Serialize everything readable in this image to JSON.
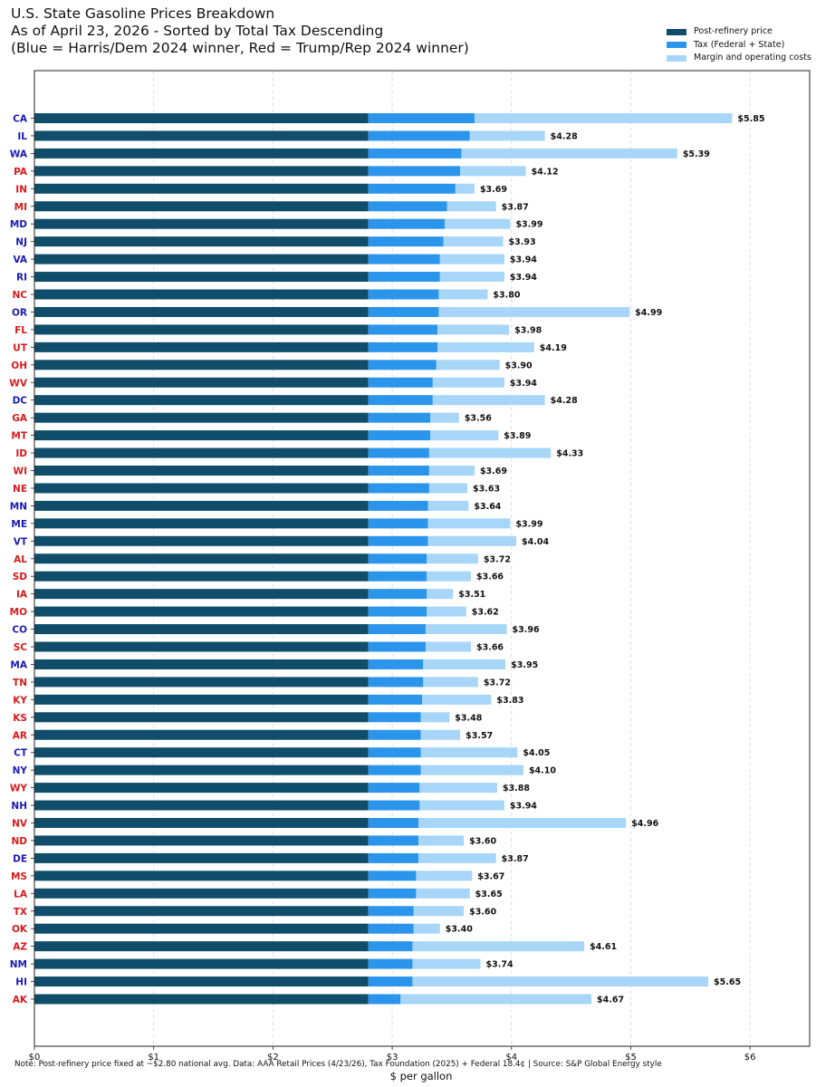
{
  "title_lines": [
    "U.S. State Gasoline Prices Breakdown",
    "As of April 23, 2026 - Sorted by Total Tax Descending",
    "(Blue = Harris/Dem 2024 winner, Red = Trump/Rep 2024 winner)"
  ],
  "footnote": "Note: Post-refinery price fixed at ~$2.80 national avg. Data: AAA Retail Prices (4/23/26), Tax Foundation (2025) + Federal 18.4¢ | Source: S&P Global Energy style",
  "colors": {
    "post_refinery": "#0f4d6a",
    "tax": "#2b95ec",
    "margin": "#a7d6f8",
    "dem": "#1a1ab5",
    "rep": "#d91a1a"
  },
  "chart_data": {
    "type": "bar",
    "orientation": "horizontal",
    "stacked": true,
    "xlabel": "$ per gallon",
    "xlim": [
      0,
      6.5
    ],
    "xticks": [
      0,
      1,
      2,
      3,
      4,
      5,
      6
    ],
    "xtick_labels": [
      "$0",
      "$1",
      "$2",
      "$3",
      "$4",
      "$5",
      "$6"
    ],
    "grid": "x, dashed",
    "legend_position": "top-right",
    "categories": [
      "CA",
      "IL",
      "WA",
      "PA",
      "IN",
      "MI",
      "MD",
      "NJ",
      "VA",
      "RI",
      "NC",
      "OR",
      "FL",
      "UT",
      "OH",
      "WV",
      "DC",
      "GA",
      "MT",
      "ID",
      "WI",
      "NE",
      "MN",
      "ME",
      "VT",
      "AL",
      "SD",
      "IA",
      "MO",
      "CO",
      "SC",
      "MA",
      "TN",
      "KY",
      "KS",
      "AR",
      "CT",
      "NY",
      "WY",
      "NH",
      "NV",
      "ND",
      "DE",
      "MS",
      "LA",
      "TX",
      "OK",
      "AZ",
      "NM",
      "HI",
      "AK"
    ],
    "party": [
      "dem",
      "dem",
      "dem",
      "rep",
      "rep",
      "rep",
      "dem",
      "dem",
      "dem",
      "dem",
      "rep",
      "dem",
      "rep",
      "rep",
      "rep",
      "rep",
      "dem",
      "rep",
      "rep",
      "rep",
      "rep",
      "rep",
      "dem",
      "dem",
      "dem",
      "rep",
      "rep",
      "rep",
      "rep",
      "dem",
      "rep",
      "dem",
      "rep",
      "rep",
      "rep",
      "rep",
      "dem",
      "dem",
      "rep",
      "dem",
      "rep",
      "rep",
      "dem",
      "rep",
      "rep",
      "rep",
      "rep",
      "rep",
      "dem",
      "dem",
      "rep"
    ],
    "series": [
      {
        "name": "Post-refinery price",
        "values": [
          2.8,
          2.8,
          2.8,
          2.8,
          2.8,
          2.8,
          2.8,
          2.8,
          2.8,
          2.8,
          2.8,
          2.8,
          2.8,
          2.8,
          2.8,
          2.8,
          2.8,
          2.8,
          2.8,
          2.8,
          2.8,
          2.8,
          2.8,
          2.8,
          2.8,
          2.8,
          2.8,
          2.8,
          2.8,
          2.8,
          2.8,
          2.8,
          2.8,
          2.8,
          2.8,
          2.8,
          2.8,
          2.8,
          2.8,
          2.8,
          2.8,
          2.8,
          2.8,
          2.8,
          2.8,
          2.8,
          2.8,
          2.8,
          2.8,
          2.8,
          2.8
        ]
      },
      {
        "name": "Tax (Federal + State)",
        "values": [
          0.89,
          0.85,
          0.78,
          0.77,
          0.73,
          0.66,
          0.64,
          0.63,
          0.6,
          0.6,
          0.59,
          0.59,
          0.58,
          0.58,
          0.57,
          0.54,
          0.54,
          0.52,
          0.52,
          0.51,
          0.51,
          0.51,
          0.5,
          0.5,
          0.5,
          0.49,
          0.49,
          0.49,
          0.49,
          0.48,
          0.48,
          0.46,
          0.46,
          0.45,
          0.44,
          0.44,
          0.44,
          0.44,
          0.43,
          0.43,
          0.42,
          0.42,
          0.42,
          0.4,
          0.4,
          0.38,
          0.38,
          0.37,
          0.37,
          0.37,
          0.27
        ]
      },
      {
        "name": "Margin and operating costs",
        "values": [
          2.16,
          0.63,
          1.81,
          0.55,
          0.16,
          0.41,
          0.55,
          0.5,
          0.54,
          0.54,
          0.41,
          1.6,
          0.6,
          0.81,
          0.53,
          0.6,
          0.94,
          0.24,
          0.57,
          1.02,
          0.38,
          0.32,
          0.34,
          0.69,
          0.74,
          0.43,
          0.37,
          0.22,
          0.33,
          0.68,
          0.38,
          0.69,
          0.46,
          0.58,
          0.24,
          0.33,
          0.81,
          0.86,
          0.65,
          0.71,
          1.74,
          0.38,
          0.65,
          0.47,
          0.45,
          0.42,
          0.22,
          1.44,
          0.57,
          2.48,
          1.6
        ]
      }
    ],
    "totals": [
      5.85,
      4.28,
      5.39,
      4.12,
      3.69,
      3.87,
      3.99,
      3.93,
      3.94,
      3.94,
      3.8,
      4.99,
      3.98,
      4.19,
      3.9,
      3.94,
      4.28,
      3.56,
      3.89,
      4.33,
      3.69,
      3.63,
      3.64,
      3.99,
      4.04,
      3.72,
      3.66,
      3.51,
      3.62,
      3.96,
      3.66,
      3.95,
      3.72,
      3.83,
      3.48,
      3.57,
      4.05,
      4.1,
      3.88,
      3.94,
      4.96,
      3.6,
      3.87,
      3.67,
      3.65,
      3.6,
      3.4,
      4.61,
      3.74,
      5.65,
      4.67
    ],
    "total_labels": [
      "$5.85",
      "$4.28",
      "$5.39",
      "$4.12",
      "$3.69",
      "$3.87",
      "$3.99",
      "$3.93",
      "$3.94",
      "$3.94",
      "$3.80",
      "$4.99",
      "$3.98",
      "$4.19",
      "$3.90",
      "$3.94",
      "$4.28",
      "$3.56",
      "$3.89",
      "$4.33",
      "$3.69",
      "$3.63",
      "$3.64",
      "$3.99",
      "$4.04",
      "$3.72",
      "$3.66",
      "$3.51",
      "$3.62",
      "$3.96",
      "$3.66",
      "$3.95",
      "$3.72",
      "$3.83",
      "$3.48",
      "$3.57",
      "$4.05",
      "$4.10",
      "$3.88",
      "$3.94",
      "$4.96",
      "$3.60",
      "$3.87",
      "$3.67",
      "$3.65",
      "$3.60",
      "$3.40",
      "$4.61",
      "$3.74",
      "$5.65",
      "$4.67"
    ]
  }
}
